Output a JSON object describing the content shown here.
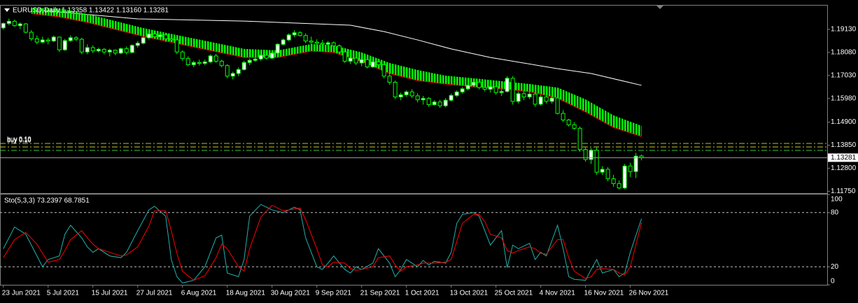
{
  "chart_data": [
    {
      "type": "candlestick",
      "title": "EURUSD,Daily  1.13358 1.13422 1.13160 1.13281",
      "xlim": [
        -0.6,
        147.3
      ],
      "ylim": [
        1.11665,
        1.20215
      ],
      "yticks": [
        {
          "value": 1.1913,
          "label": "1.19130"
        },
        {
          "value": 1.1808,
          "label": "1.18080"
        },
        {
          "value": 1.1703,
          "label": "1.17030"
        },
        {
          "value": 1.1598,
          "label": "1.15980"
        },
        {
          "value": 1.149,
          "label": "1.14900"
        },
        {
          "value": 1.1385,
          "label": "1.13850"
        },
        {
          "value": 1.128,
          "label": "1.12800"
        },
        {
          "value": 1.1175,
          "label": "1.11750"
        }
      ],
      "candle_color": "#00ff00",
      "up_body": "#ffffff",
      "down_body": "#000000",
      "ohlc": [
        [
          1.192,
          1.1945,
          1.1912,
          1.194
        ],
        [
          1.194,
          1.1962,
          1.1932,
          1.195
        ],
        [
          1.195,
          1.1958,
          1.1925,
          1.193
        ],
        [
          1.193,
          1.1945,
          1.1915,
          1.1938
        ],
        [
          1.1938,
          1.1942,
          1.1895,
          1.19
        ],
        [
          1.19,
          1.191,
          1.186,
          1.187
        ],
        [
          1.187,
          1.1885,
          1.1845,
          1.1855
        ],
        [
          1.1855,
          1.188,
          1.185,
          1.1865
        ],
        [
          1.1865,
          1.1875,
          1.1845,
          1.186
        ],
        [
          1.186,
          1.1885,
          1.1855,
          1.1878
        ],
        [
          1.1878,
          1.188,
          1.181,
          1.182
        ],
        [
          1.182,
          1.187,
          1.1815,
          1.1862
        ],
        [
          1.1862,
          1.1885,
          1.1855,
          1.1875
        ],
        [
          1.1875,
          1.1882,
          1.186,
          1.1868
        ],
        [
          1.1868,
          1.1875,
          1.18,
          1.181
        ],
        [
          1.181,
          1.1845,
          1.18,
          1.183
        ],
        [
          1.183,
          1.184,
          1.1805,
          1.1815
        ],
        [
          1.1815,
          1.183,
          1.1808,
          1.1822
        ],
        [
          1.1822,
          1.1828,
          1.18,
          1.181
        ],
        [
          1.181,
          1.1825,
          1.179,
          1.1818
        ],
        [
          1.1818,
          1.1822,
          1.1795,
          1.1805
        ],
        [
          1.1805,
          1.183,
          1.18,
          1.1825
        ],
        [
          1.1825,
          1.1835,
          1.1798,
          1.1808
        ],
        [
          1.1808,
          1.1845,
          1.1805,
          1.184
        ],
        [
          1.184,
          1.186,
          1.183,
          1.185
        ],
        [
          1.185,
          1.188,
          1.1845,
          1.1875
        ],
        [
          1.1875,
          1.19,
          1.1868,
          1.1892
        ],
        [
          1.1892,
          1.1905,
          1.187,
          1.188
        ],
        [
          1.188,
          1.1895,
          1.1875,
          1.1888
        ],
        [
          1.1888,
          1.1892,
          1.1855,
          1.187
        ],
        [
          1.187,
          1.188,
          1.186,
          1.1865
        ],
        [
          1.1865,
          1.1872,
          1.18,
          1.181
        ],
        [
          1.181,
          1.1818,
          1.177,
          1.178
        ],
        [
          1.178,
          1.179,
          1.1745,
          1.1752
        ],
        [
          1.1752,
          1.177,
          1.174,
          1.1762
        ],
        [
          1.1762,
          1.1775,
          1.1748,
          1.1758
        ],
        [
          1.1758,
          1.1775,
          1.175,
          1.1765
        ],
        [
          1.1765,
          1.18,
          1.176,
          1.1792
        ],
        [
          1.1792,
          1.1802,
          1.176,
          1.1768
        ],
        [
          1.1768,
          1.1775,
          1.174,
          1.1748
        ],
        [
          1.1748,
          1.1755,
          1.169,
          1.17
        ],
        [
          1.17,
          1.172,
          1.1685,
          1.1712
        ],
        [
          1.1712,
          1.174,
          1.17,
          1.173
        ],
        [
          1.173,
          1.177,
          1.1725,
          1.1762
        ],
        [
          1.1762,
          1.178,
          1.175,
          1.1772
        ],
        [
          1.1772,
          1.179,
          1.1765,
          1.1778
        ],
        [
          1.1778,
          1.18,
          1.177,
          1.1795
        ],
        [
          1.1795,
          1.1805,
          1.1775,
          1.1782
        ],
        [
          1.1782,
          1.181,
          1.1778,
          1.1805
        ],
        [
          1.1805,
          1.185,
          1.18,
          1.1845
        ],
        [
          1.1845,
          1.1872,
          1.184,
          1.1865
        ],
        [
          1.1865,
          1.1895,
          1.186,
          1.1888
        ],
        [
          1.1888,
          1.191,
          1.1878,
          1.1898
        ],
        [
          1.1898,
          1.1905,
          1.188,
          1.1885
        ],
        [
          1.1885,
          1.1895,
          1.185,
          1.186
        ],
        [
          1.186,
          1.188,
          1.1845,
          1.1855
        ],
        [
          1.1855,
          1.1868,
          1.1838,
          1.185
        ],
        [
          1.185,
          1.1865,
          1.1835,
          1.1845
        ],
        [
          1.1845,
          1.186,
          1.1835,
          1.1852
        ],
        [
          1.1852,
          1.1858,
          1.183,
          1.1838
        ],
        [
          1.1838,
          1.1845,
          1.18,
          1.181
        ],
        [
          1.181,
          1.1815,
          1.176,
          1.1768
        ],
        [
          1.1768,
          1.179,
          1.1755,
          1.1782
        ],
        [
          1.1782,
          1.179,
          1.175,
          1.176
        ],
        [
          1.176,
          1.1785,
          1.1745,
          1.1775
        ],
        [
          1.1775,
          1.1785,
          1.1735,
          1.1742
        ],
        [
          1.1742,
          1.1772,
          1.1738,
          1.1765
        ],
        [
          1.1765,
          1.1775,
          1.1745,
          1.1752
        ],
        [
          1.1752,
          1.1758,
          1.169,
          1.17
        ],
        [
          1.17,
          1.1715,
          1.166,
          1.1672
        ],
        [
          1.1672,
          1.168,
          1.1595,
          1.1605
        ],
        [
          1.1605,
          1.1625,
          1.159,
          1.1615
        ],
        [
          1.1615,
          1.1635,
          1.1605,
          1.1628
        ],
        [
          1.1628,
          1.164,
          1.16,
          1.161
        ],
        [
          1.161,
          1.1622,
          1.158,
          1.1592
        ],
        [
          1.1592,
          1.161,
          1.157,
          1.1598
        ],
        [
          1.1598,
          1.1605,
          1.156,
          1.157
        ],
        [
          1.157,
          1.159,
          1.1565,
          1.1582
        ],
        [
          1.1582,
          1.1592,
          1.1555,
          1.1565
        ],
        [
          1.1565,
          1.16,
          1.1558,
          1.159
        ],
        [
          1.159,
          1.162,
          1.1585,
          1.1612
        ],
        [
          1.1612,
          1.1635,
          1.1605,
          1.1628
        ],
        [
          1.1628,
          1.165,
          1.162,
          1.1642
        ],
        [
          1.1642,
          1.1665,
          1.1635,
          1.1658
        ],
        [
          1.1658,
          1.1685,
          1.165,
          1.1672
        ],
        [
          1.1672,
          1.168,
          1.164,
          1.1648
        ],
        [
          1.1648,
          1.1665,
          1.163,
          1.164
        ],
        [
          1.164,
          1.166,
          1.1625,
          1.1652
        ],
        [
          1.1652,
          1.1668,
          1.1615,
          1.1625
        ],
        [
          1.1625,
          1.164,
          1.161,
          1.163
        ],
        [
          1.163,
          1.17,
          1.1625,
          1.169
        ],
        [
          1.169,
          1.17,
          1.157,
          1.1585
        ],
        [
          1.1585,
          1.163,
          1.1575,
          1.162
        ],
        [
          1.162,
          1.1635,
          1.159,
          1.1605
        ],
        [
          1.1605,
          1.163,
          1.1595,
          1.1618
        ],
        [
          1.1618,
          1.1625,
          1.156,
          1.1572
        ],
        [
          1.1572,
          1.1615,
          1.1565,
          1.1605
        ],
        [
          1.1605,
          1.1612,
          1.1575,
          1.1585
        ],
        [
          1.1585,
          1.161,
          1.1575,
          1.16
        ],
        [
          1.16,
          1.1605,
          1.1525,
          1.153
        ],
        [
          1.153,
          1.1545,
          1.149,
          1.15
        ],
        [
          1.15,
          1.1505,
          1.147,
          1.1478
        ],
        [
          1.1478,
          1.149,
          1.1455,
          1.1462
        ],
        [
          1.1462,
          1.147,
          1.1355,
          1.1365
        ],
        [
          1.1365,
          1.1375,
          1.131,
          1.132
        ],
        [
          1.132,
          1.1372,
          1.13,
          1.1362
        ],
        [
          1.1362,
          1.1375,
          1.125,
          1.1262
        ],
        [
          1.1262,
          1.129,
          1.125,
          1.1275
        ],
        [
          1.1275,
          1.1285,
          1.122,
          1.1232
        ],
        [
          1.1232,
          1.125,
          1.1195,
          1.121
        ],
        [
          1.121,
          1.1225,
          1.1185,
          1.119
        ],
        [
          1.119,
          1.13,
          1.1185,
          1.129
        ],
        [
          1.129,
          1.1305,
          1.124,
          1.1265
        ],
        [
          1.1265,
          1.135,
          1.1235,
          1.1335
        ],
        [
          1.13358,
          1.13422,
          1.1316,
          1.13281
        ]
      ],
      "band": {
        "color": "#00ff00",
        "edge_color": "#ff0000",
        "x": [
          5,
          10,
          15,
          20,
          25,
          31,
          37,
          43,
          49,
          55,
          59,
          64,
          69,
          74,
          79,
          84,
          89,
          94,
          99,
          104,
          109,
          114
        ],
        "upper": [
          1.201,
          1.2009,
          1.1983,
          1.1951,
          1.1919,
          1.1887,
          1.1856,
          1.1824,
          1.1817,
          1.1846,
          1.184,
          1.1808,
          1.176,
          1.1728,
          1.1702,
          1.169,
          1.1677,
          1.1664,
          1.1648,
          1.1594,
          1.1521,
          1.1473
        ],
        "lower": [
          1.1985,
          1.197,
          1.1945,
          1.1913,
          1.1881,
          1.1849,
          1.1817,
          1.1785,
          1.1785,
          1.1814,
          1.1808,
          1.1766,
          1.1712,
          1.168,
          1.1664,
          1.1651,
          1.1642,
          1.1629,
          1.16,
          1.1537,
          1.1466,
          1.1425
        ]
      },
      "lines": [
        {
          "color": "#ffffff",
          "x": [
            7,
            24,
            43,
            62,
            68,
            74,
            80,
            87,
            99,
            105,
            114
          ],
          "values": [
            1.1999,
            1.1961,
            1.1951,
            1.1932,
            1.1903,
            1.1865,
            1.1824,
            1.1785,
            1.1734,
            1.1712,
            1.1658
          ]
        }
      ],
      "levels": [
        {
          "value": 1.1393,
          "label": "buy 0.10",
          "color": "#9acd32"
        },
        {
          "value": 1.1377,
          "label": "buy 0.10",
          "color": "#c8c832"
        },
        {
          "value": 1.1361,
          "label": "buy 0.10",
          "color": "#32cd32"
        }
      ],
      "price_line_color": "#a0a0a0"
    },
    {
      "type": "stochastic",
      "title": "Sto(5,3,3) 73.2397 68.7851",
      "xlim": [
        -0.6,
        147.3
      ],
      "ylim": [
        0,
        100
      ],
      "yticks": [
        0,
        20,
        80,
        100
      ],
      "level_lines": [
        20,
        80
      ],
      "xticks": [
        {
          "value": 0,
          "label": "23 Jun 2021"
        },
        {
          "value": 8,
          "label": "5 Jul 2021"
        },
        {
          "value": 16,
          "label": "15 Jul 2021"
        },
        {
          "value": 24,
          "label": "27 Jul 2021"
        },
        {
          "value": 32,
          "label": "6 Aug 2021"
        },
        {
          "value": 40,
          "label": "18 Aug 2021"
        },
        {
          "value": 48,
          "label": "30 Aug 2021"
        },
        {
          "value": 56,
          "label": "9 Sep 2021"
        },
        {
          "value": 64,
          "label": "21 Sep 2021"
        },
        {
          "value": 72,
          "label": "1 Oct 2021"
        },
        {
          "value": 80,
          "label": "13 Oct 2021"
        },
        {
          "value": 88,
          "label": "25 Oct 2021"
        },
        {
          "value": 96,
          "label": "4 Nov 2021"
        },
        {
          "value": 104,
          "label": "16 Nov 2021"
        },
        {
          "value": 112,
          "label": "26 Nov 2021"
        }
      ],
      "x": [
        0,
        2,
        4,
        6,
        7,
        8,
        10,
        11,
        12,
        14,
        15,
        16,
        17,
        19,
        21,
        22,
        24,
        26,
        27,
        29,
        30,
        31,
        32,
        34,
        36,
        38,
        39,
        40,
        42,
        43,
        44,
        46,
        48,
        50,
        52,
        53,
        54,
        56,
        57,
        58,
        59,
        61,
        62,
        63,
        64,
        66,
        67,
        69,
        70,
        71,
        72,
        74,
        75,
        76,
        77,
        79,
        80,
        81,
        82,
        84,
        85,
        86,
        87,
        89,
        90,
        91,
        92,
        94,
        95,
        96,
        97,
        99,
        100,
        101,
        102,
        104,
        105,
        106,
        107,
        109,
        110,
        111,
        112,
        114
      ],
      "series": [
        {
          "color": "#20b2aa",
          "values": [
            40,
            64,
            56,
            32,
            20,
            28,
            32,
            56,
            66,
            52,
            42,
            36,
            40,
            32,
            30,
            36,
            60,
            83,
            87,
            76,
            28,
            9,
            2,
            5,
            20,
            52,
            55,
            13,
            9,
            28,
            76,
            89,
            83,
            80,
            86,
            83,
            52,
            20,
            17,
            24,
            32,
            17,
            13,
            20,
            17,
            24,
            40,
            24,
            9,
            17,
            28,
            20,
            27,
            22,
            26,
            24,
            36,
            68,
            78,
            80,
            76,
            60,
            44,
            60,
            19,
            44,
            40,
            46,
            28,
            36,
            32,
            66,
            40,
            9,
            6,
            5,
            17,
            28,
            13,
            17,
            9,
            13,
            36,
            73.2397
          ]
        },
        {
          "color": "#ff0000",
          "values": [
            30,
            50,
            58,
            45,
            35,
            25,
            28,
            38,
            50,
            60,
            52,
            45,
            40,
            36,
            32,
            33,
            42,
            65,
            82,
            82,
            60,
            35,
            15,
            5,
            10,
            30,
            45,
            40,
            20,
            15,
            40,
            75,
            88,
            82,
            84,
            85,
            72,
            40,
            22,
            20,
            25,
            24,
            18,
            16,
            17,
            20,
            30,
            32,
            22,
            15,
            20,
            22,
            24,
            24,
            24,
            25,
            28,
            48,
            68,
            78,
            78,
            70,
            56,
            52,
            38,
            35,
            38,
            42,
            40,
            35,
            34,
            50,
            50,
            30,
            15,
            7,
            9,
            17,
            18,
            17,
            13,
            11,
            20,
            68.7851
          ]
        }
      ]
    }
  ]
}
